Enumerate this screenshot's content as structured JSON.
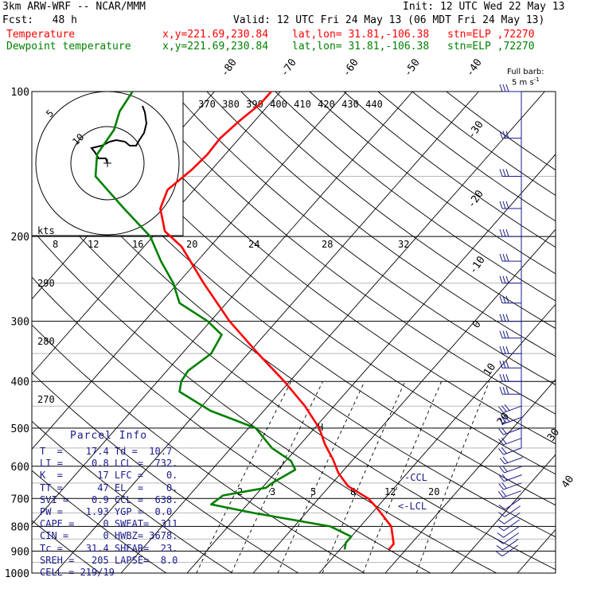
{
  "header": {
    "model": "3km ARW-WRF -- NCAR/MMM",
    "init": "Init: 12 UTC Wed 22 May 13",
    "fcst": "Fcst:   48 h",
    "valid": "Valid: 12 UTC Fri 24 May 13 (06 MDT Fri 24 May 13)",
    "temp_label": "Temperature",
    "dew_label": "Dewpoint temperature",
    "temp_xy": "x,y=221.69,230.84",
    "temp_latlon": "lat,lon= 31.81,-106.38",
    "temp_stn": "stn=ELP ,72270",
    "dew_xy": "x,y=221.69,230.84",
    "dew_latlon": "lat,lon= 31.81,-106.38",
    "dew_stn": "stn=ELP ,72270"
  },
  "colors": {
    "temperature": "#ff0000",
    "dewpoint": "#008000",
    "text": "#000000",
    "info": "#1a1a8c"
  },
  "barb_label": {
    "line1": "Full barb:",
    "line2": "5 m s",
    "sup": "-1"
  },
  "parcel_info": {
    "title": "Parcel Info",
    "rows": [
      "T  =    17.4 Td =  10.7",
      "LI =     0.8 LCL =  732.",
      "K  =      17 LFC =    0.",
      "TT =      47 EL  =    0.",
      "SVI =    0.9 CCL =  638.",
      "PW =    1.93 YGP =  0.0",
      "CAPE =     0 SWEAT=  311",
      "CIN =      0 HWBZ= 3678.",
      "Tc =    31.4 SHEAR=  23.",
      "SREH =   205 LAPSE=  8.0",
      "CELL = 219/19"
    ]
  },
  "chart_data": {
    "type": "line",
    "title": "3km ARW-WRF -- NCAR/MMM",
    "y_axis": {
      "label": "Pressure (hPa)",
      "scale": "log",
      "range": [
        1000,
        100
      ],
      "ticks": [
        100,
        200,
        300,
        400,
        500,
        600,
        700,
        800,
        900,
        1000
      ]
    },
    "skewed_temperature_labels": [
      "-80",
      "-70",
      "-60",
      "-50",
      "-40",
      "-30",
      "-20",
      "-10",
      "0",
      "10",
      "20",
      "30",
      "40"
    ],
    "theta_labels": [
      "370",
      "380",
      "390",
      "400",
      "410",
      "420",
      "430",
      "440"
    ],
    "dry_adiabat_labels": [
      "290",
      "280",
      "270"
    ],
    "mixing_ratio_labels": [
      "2",
      "3",
      "5",
      "8",
      "12",
      "20"
    ],
    "level_labels": [
      "-CCL",
      "<-LCL",
      "H"
    ],
    "hodograph": {
      "units": "kts",
      "ring_labels": [
        "5",
        "10"
      ],
      "speed_ticks": [
        "8",
        "12",
        "16",
        "20",
        "24",
        "28",
        "32"
      ]
    },
    "series": [
      {
        "name": "Temperature",
        "color": "#ff0000",
        "points": [
          {
            "p": 893,
            "T": 17.4
          },
          {
            "p": 870,
            "T": 17.4
          },
          {
            "p": 800,
            "T": 14.7
          },
          {
            "p": 730,
            "T": 9.9
          },
          {
            "p": 700,
            "T": 7.5
          },
          {
            "p": 660,
            "T": 2.8
          },
          {
            "p": 620,
            "T": -0.4
          },
          {
            "p": 580,
            "T": -3.1
          },
          {
            "p": 540,
            "T": -6.3
          },
          {
            "p": 500,
            "T": -9.3
          },
          {
            "p": 450,
            "T": -14.4
          },
          {
            "p": 400,
            "T": -20.8
          },
          {
            "p": 350,
            "T": -28.5
          },
          {
            "p": 300,
            "T": -37.1
          },
          {
            "p": 250,
            "T": -46.1
          },
          {
            "p": 210,
            "T": -54.3
          },
          {
            "p": 195,
            "T": -58.9
          },
          {
            "p": 175,
            "T": -62.6
          },
          {
            "p": 160,
            "T": -64.0
          },
          {
            "p": 145,
            "T": -63.0
          },
          {
            "p": 135,
            "T": -62.7
          },
          {
            "p": 125,
            "T": -62.9
          },
          {
            "p": 115,
            "T": -62.3
          },
          {
            "p": 106,
            "T": -61.4
          },
          {
            "p": 100,
            "T": -61.4
          }
        ]
      },
      {
        "name": "Dewpoint temperature",
        "color": "#008000",
        "points": [
          {
            "p": 893,
            "T": 10.7
          },
          {
            "p": 865,
            "T": 10.0
          },
          {
            "p": 840,
            "T": 10.0
          },
          {
            "p": 800,
            "T": 5.5
          },
          {
            "p": 750,
            "T": -8.0
          },
          {
            "p": 720,
            "T": -15.5
          },
          {
            "p": 690,
            "T": -14.9
          },
          {
            "p": 665,
            "T": -9.4
          },
          {
            "p": 650,
            "T": -9.1
          },
          {
            "p": 610,
            "T": -7.4
          },
          {
            "p": 585,
            "T": -9.2
          },
          {
            "p": 550,
            "T": -13.8
          },
          {
            "p": 500,
            "T": -18.9
          },
          {
            "p": 460,
            "T": -28.1
          },
          {
            "p": 420,
            "T": -35.3
          },
          {
            "p": 400,
            "T": -36.4
          },
          {
            "p": 380,
            "T": -36.8
          },
          {
            "p": 350,
            "T": -35.6
          },
          {
            "p": 320,
            "T": -36.5
          },
          {
            "p": 300,
            "T": -40.4
          },
          {
            "p": 275,
            "T": -47.1
          },
          {
            "p": 250,
            "T": -50.7
          },
          {
            "p": 225,
            "T": -55.5
          },
          {
            "p": 200,
            "T": -60.4
          },
          {
            "p": 175,
            "T": -68.1
          },
          {
            "p": 150,
            "T": -76.7
          },
          {
            "p": 135,
            "T": -79.4
          },
          {
            "p": 120,
            "T": -80.1
          },
          {
            "p": 110,
            "T": -81.7
          },
          {
            "p": 100,
            "T": -82.4
          }
        ]
      }
    ]
  }
}
